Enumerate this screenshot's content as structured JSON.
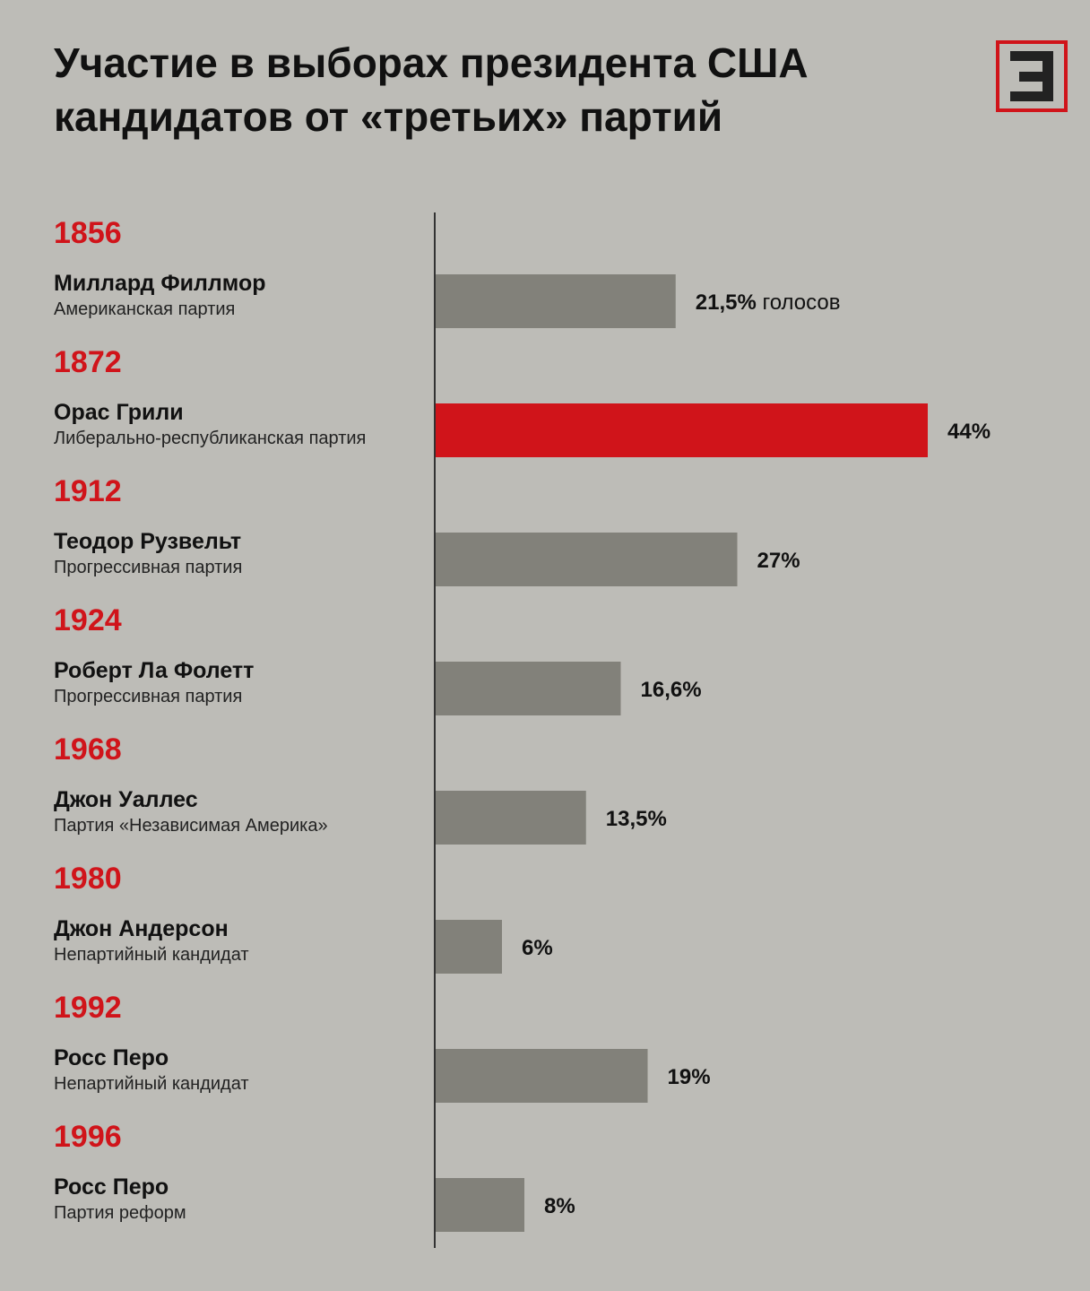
{
  "title": {
    "line1": "Участие в выборах президента США",
    "line2": "кандидатов от «третьих» партий"
  },
  "logo": {
    "icon": "logo-3-icon",
    "color": "#d0141a"
  },
  "colors": {
    "bar": "#82817a",
    "highlight": "#d0141a",
    "year": "#d0141a",
    "background": "#bdbcb7"
  },
  "chart_data": {
    "type": "bar",
    "orientation": "horizontal",
    "title": "Участие в выборах президента США кандидатов от «третьих» партий",
    "unit_suffix": "голосов",
    "xlim": [
      0,
      44
    ],
    "rows": [
      {
        "year": "1856",
        "candidate": "Миллард Филлмор",
        "party": "Американская партия",
        "value": 21.5,
        "label": "21,5%",
        "suffix": "голосов",
        "highlight": false
      },
      {
        "year": "1872",
        "candidate": "Орас Грили",
        "party": "Либерально-республиканская партия",
        "value": 44,
        "label": "44%",
        "suffix": "",
        "highlight": true
      },
      {
        "year": "1912",
        "candidate": "Теодор Рузвельт",
        "party": "Прогрессивная партия",
        "value": 27,
        "label": "27%",
        "suffix": "",
        "highlight": false
      },
      {
        "year": "1924",
        "candidate": "Роберт Ла Фолетт",
        "party": "Прогрессивная партия",
        "value": 16.6,
        "label": "16,6%",
        "suffix": "",
        "highlight": false
      },
      {
        "year": "1968",
        "candidate": "Джон Уаллес",
        "party": "Партия «Независимая Америка»",
        "value": 13.5,
        "label": "13,5%",
        "suffix": "",
        "highlight": false
      },
      {
        "year": "1980",
        "candidate": "Джон Андерсон",
        "party": "Непартийный кандидат",
        "value": 6,
        "label": "6%",
        "suffix": "",
        "highlight": false
      },
      {
        "year": "1992",
        "candidate": "Росс Перо",
        "party": "Непартийный кандидат",
        "value": 19,
        "label": "19%",
        "suffix": "",
        "highlight": false
      },
      {
        "year": "1996",
        "candidate": "Росс Перо",
        "party": "Партия реформ",
        "value": 8,
        "label": "8%",
        "suffix": "",
        "highlight": false
      }
    ]
  }
}
